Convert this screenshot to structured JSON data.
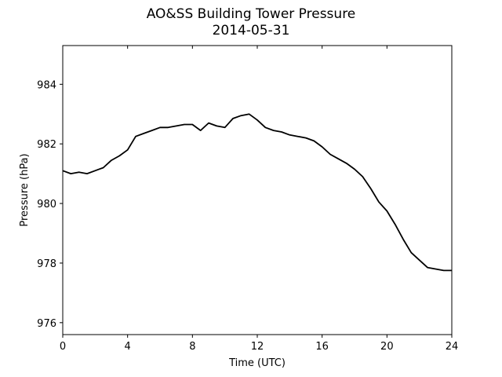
{
  "chart_data": {
    "type": "line",
    "title": "AO&SS Building Tower Pressure",
    "subtitle": "2014-05-31",
    "xlabel": "Time (UTC)",
    "ylabel": "Pressure (hPa)",
    "xlim": [
      0,
      24
    ],
    "ylim": [
      975.6,
      985.3
    ],
    "xticks": [
      0,
      4,
      8,
      12,
      16,
      20,
      24
    ],
    "yticks": [
      976,
      978,
      980,
      982,
      984
    ],
    "grid": false,
    "series": [
      {
        "color": "#000000",
        "x": [
          0,
          0.5,
          1,
          1.5,
          2,
          2.5,
          3,
          3.5,
          4,
          4.5,
          5,
          5.5,
          6,
          6.5,
          7,
          7.5,
          8,
          8.5,
          9,
          9.5,
          10,
          10.5,
          11,
          11.5,
          12,
          12.5,
          13,
          13.5,
          14,
          14.5,
          15,
          15.5,
          16,
          16.5,
          17,
          17.5,
          18,
          18.5,
          19,
          19.5,
          20,
          20.5,
          21,
          21.5,
          22,
          22.5,
          23,
          23.5,
          24
        ],
        "y": [
          981.1,
          981.0,
          981.05,
          981.0,
          981.1,
          981.2,
          981.45,
          981.6,
          981.8,
          982.25,
          982.35,
          982.45,
          982.55,
          982.55,
          982.6,
          982.65,
          982.65,
          982.45,
          982.7,
          982.6,
          982.55,
          982.85,
          982.95,
          983.0,
          982.8,
          982.55,
          982.45,
          982.4,
          982.3,
          982.25,
          982.2,
          982.1,
          981.9,
          981.65,
          981.5,
          981.35,
          981.15,
          980.9,
          980.5,
          980.05,
          979.75,
          979.3,
          978.8,
          978.35,
          978.1,
          977.85,
          977.8,
          977.75,
          977.75
        ]
      }
    ]
  }
}
